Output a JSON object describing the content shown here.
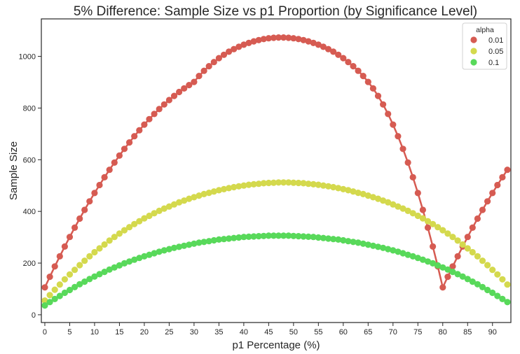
{
  "chart_data": {
    "type": "scatter",
    "title": "5% Difference: Sample Size vs p1 Proportion (by Significance Level)",
    "xlabel": "p1 Percentage (%)",
    "ylabel": "Sample Size",
    "xlim": [
      -0.7,
      93.7
    ],
    "ylim": [
      -30,
      1145
    ],
    "xticks": [
      0,
      5,
      10,
      15,
      20,
      25,
      30,
      35,
      40,
      45,
      50,
      55,
      60,
      65,
      70,
      75,
      80,
      85,
      90
    ],
    "yticks": [
      0,
      200,
      400,
      600,
      800,
      1000
    ],
    "grid": false,
    "legend": {
      "title": "alpha",
      "position": "top-right"
    },
    "x_range": {
      "start": 0,
      "end": 93,
      "step": 1
    },
    "series": [
      {
        "name": "0.01",
        "color": "#d65b52",
        "connected": true,
        "values": [
          106,
          147,
          187,
          226,
          264,
          301,
          337,
          372,
          406,
          439,
          471,
          502,
          532,
          561,
          589,
          616,
          642,
          667,
          691,
          714,
          736,
          757,
          777,
          796,
          814,
          831,
          847,
          862,
          876,
          889,
          901,
          924,
          944,
          962,
          978,
          993,
          1006,
          1018,
          1028,
          1037,
          1045,
          1052,
          1058,
          1063,
          1067,
          1070,
          1072,
          1073,
          1073,
          1072,
          1070,
          1067,
          1063,
          1058,
          1052,
          1045,
          1037,
          1028,
          1018,
          1006,
          993,
          978,
          962,
          944,
          924,
          901,
          876,
          847,
          814,
          777,
          736,
          691,
          642,
          589,
          532,
          471,
          406,
          337,
          264,
          187,
          106,
          147,
          187,
          226,
          264,
          301,
          337,
          372,
          406,
          439,
          471,
          502,
          532,
          561
        ]
      },
      {
        "name": "0.05",
        "color": "#d4d94d",
        "connected": false,
        "values": [
          55,
          76,
          97,
          117,
          137,
          156,
          174,
          192,
          209,
          226,
          242,
          257,
          272,
          287,
          301,
          314,
          327,
          339,
          351,
          362,
          373,
          383,
          393,
          402,
          411,
          419,
          427,
          435,
          442,
          449,
          455,
          461,
          467,
          472,
          477,
          482,
          486,
          490,
          494,
          497,
          500,
          503,
          505,
          507,
          509,
          510,
          511,
          512,
          512,
          512,
          511,
          510,
          509,
          507,
          505,
          503,
          500,
          497,
          494,
          490,
          486,
          482,
          477,
          472,
          467,
          461,
          455,
          449,
          442,
          435,
          427,
          419,
          411,
          402,
          393,
          383,
          373,
          362,
          351,
          339,
          327,
          314,
          301,
          287,
          272,
          257,
          242,
          226,
          209,
          192,
          174,
          156,
          137,
          117
        ]
      },
      {
        "name": "0.1",
        "color": "#58d95a",
        "connected": false,
        "values": [
          36,
          49,
          61,
          73,
          85,
          96,
          107,
          118,
          128,
          138,
          148,
          157,
          166,
          175,
          183,
          191,
          199,
          206,
          213,
          220,
          226,
          232,
          238,
          244,
          249,
          254,
          259,
          263,
          267,
          271,
          275,
          279,
          282,
          285,
          288,
          291,
          293,
          295,
          297,
          299,
          301,
          302,
          303,
          304,
          305,
          306,
          306,
          306,
          306,
          306,
          305,
          304,
          303,
          302,
          301,
          299,
          297,
          295,
          293,
          291,
          288,
          285,
          282,
          279,
          275,
          271,
          267,
          263,
          259,
          254,
          249,
          244,
          238,
          232,
          226,
          220,
          213,
          206,
          199,
          191,
          183,
          175,
          166,
          157,
          148,
          138,
          128,
          118,
          107,
          96,
          85,
          73,
          61,
          49
        ]
      }
    ]
  }
}
